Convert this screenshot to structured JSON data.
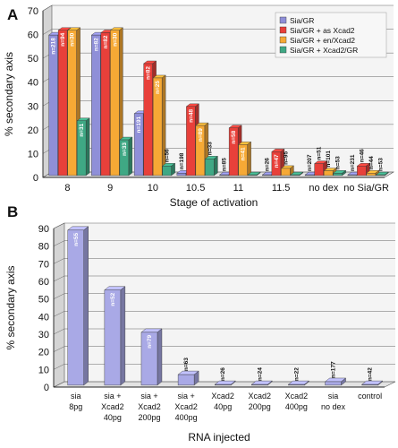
{
  "panels": [
    {
      "letter": "A",
      "chart_data": {
        "type": "bar",
        "ylabel": "% secondary axis",
        "xlabel": "Stage of activation",
        "ylim": [
          0,
          70
        ],
        "yticks": [
          0,
          10,
          20,
          30,
          40,
          50,
          60,
          70
        ],
        "grid": true,
        "legend_position": "top-right",
        "categories": [
          "8",
          "9",
          "10",
          "10.5",
          "11",
          "11.5",
          "no dex",
          "no Sia/GR"
        ],
        "series": [
          {
            "name": "Sia/GR",
            "color": "#8f8fd8",
            "values": [
              59,
              59,
              26,
              1,
              0,
              0,
              0,
              0
            ],
            "n_labels": [
              "n=218",
              "n=82",
              "n=191",
              "n=198",
              "n=85",
              "n=26",
              "n=207",
              "n=231"
            ]
          },
          {
            "name": "Sia/GR + as Xcad2",
            "color": "#e8403a",
            "values": [
              61,
              60,
              47,
              29,
              20,
              10,
              5,
              4
            ],
            "n_labels": [
              "n=94",
              "n=82",
              "n=82",
              "n=48",
              "n=58",
              "n=47",
              "n=51",
              "n=46"
            ]
          },
          {
            "name": "Sia/GR + en/Xcad2",
            "color": "#f6a935",
            "values": [
              61,
              61,
              41,
              21,
              13,
              3,
              2,
              1
            ],
            "n_labels": [
              "n=30",
              "n=30",
              "n=25",
              "n=89",
              "n=41",
              "n=95",
              "n=101",
              "n=44"
            ]
          },
          {
            "name": "Sia/GR + Xcad2/GR",
            "color": "#3fa884",
            "values": [
              23,
              15,
              4,
              7,
              0,
              0,
              1,
              0
            ],
            "n_labels": [
              "n=31",
              "n=33",
              "n=56",
              "n=33",
              "",
              "",
              "n=53",
              "n=53"
            ]
          }
        ]
      }
    },
    {
      "letter": "B",
      "chart_data": {
        "type": "bar",
        "ylabel": "% secondary axis",
        "xlabel": "RNA injected",
        "ylim": [
          0,
          90
        ],
        "yticks": [
          0,
          10,
          20,
          30,
          40,
          50,
          60,
          70,
          80,
          90
        ],
        "grid": true,
        "categories": [
          [
            "sia",
            "8pg"
          ],
          [
            "sia +",
            "Xcad2",
            "40pg"
          ],
          [
            "sia +",
            "Xcad2",
            "200pg"
          ],
          [
            "sia +",
            "Xcad2",
            "400pg"
          ],
          [
            "Xcad2",
            "40pg"
          ],
          [
            "Xcad2",
            "200pg"
          ],
          [
            "Xcad2",
            "400pg"
          ],
          [
            "sia",
            "no dex"
          ],
          [
            "control"
          ]
        ],
        "series": [
          {
            "name": "",
            "color": "#a9a9e6",
            "values": [
              88,
              54,
              30,
              6,
              0,
              0,
              0,
              2,
              0
            ],
            "n_labels": [
              "n=55",
              "n=52",
              "n=79",
              "n=63",
              "n=26",
              "n=24",
              "n=22",
              "n=177",
              "n=42"
            ]
          }
        ]
      }
    }
  ]
}
